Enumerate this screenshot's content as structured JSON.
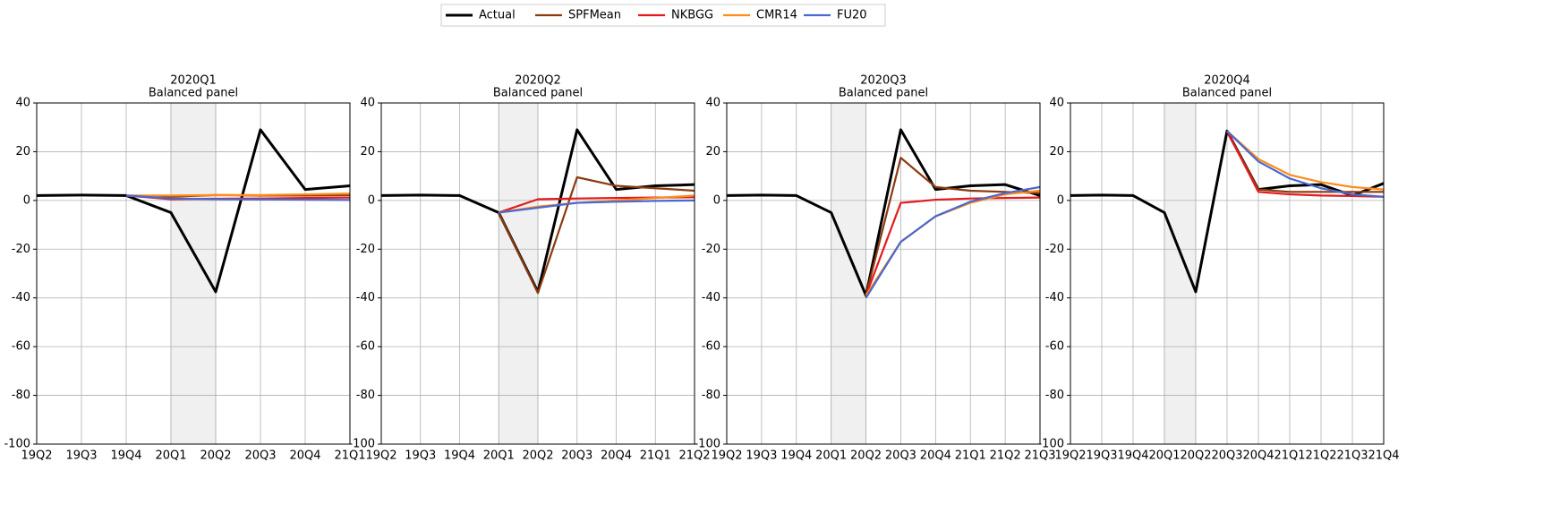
{
  "chart_data": [
    {
      "type": "line",
      "title": "2020Q1",
      "subtitle": "Balanced panel",
      "categories": [
        "19Q2",
        "19Q3",
        "19Q4",
        "20Q1",
        "20Q2",
        "20Q3",
        "20Q4",
        "21Q1"
      ],
      "shade": [
        "20Q1",
        "20Q2"
      ],
      "ylim": [
        -100,
        40
      ],
      "yticks": [
        -100,
        -80,
        -60,
        -40,
        -20,
        0,
        20,
        40
      ],
      "grid": true,
      "legend": "upper center",
      "series": [
        {
          "name": "Actual",
          "color": "#000000",
          "values": [
            2,
            2.2,
            2,
            -5,
            -37.5,
            29,
            4.5,
            6
          ]
        },
        {
          "name": "SPFMean",
          "color": "#8b3a0f",
          "values": [
            null,
            null,
            2,
            1.5,
            2.2,
            2,
            2,
            2.2
          ]
        },
        {
          "name": "NKBGG",
          "color": "#e31a1c",
          "values": [
            null,
            null,
            2,
            0.5,
            0.7,
            0.8,
            1,
            1.2
          ]
        },
        {
          "name": "CMR14",
          "color": "#ff8c1a",
          "values": [
            null,
            null,
            2,
            2,
            2.2,
            2.2,
            2.5,
            2.8
          ]
        },
        {
          "name": "FU20",
          "color": "#4a68d0",
          "values": [
            null,
            null,
            2,
            0.8,
            0.5,
            0.4,
            0.3,
            0.2
          ]
        }
      ]
    },
    {
      "type": "line",
      "title": "2020Q2",
      "subtitle": "Balanced panel",
      "categories": [
        "19Q2",
        "19Q3",
        "19Q4",
        "20Q1",
        "20Q2",
        "20Q3",
        "20Q4",
        "21Q1",
        "21Q2"
      ],
      "shade": [
        "20Q1",
        "20Q2"
      ],
      "ylim": [
        -100,
        40
      ],
      "yticks": [
        -100,
        -80,
        -60,
        -40,
        -20,
        0,
        20,
        40
      ],
      "grid": true,
      "series": [
        {
          "name": "Actual",
          "color": "#000000",
          "values": [
            2,
            2.2,
            2,
            -5,
            -37.5,
            29,
            4.5,
            6,
            6.5
          ]
        },
        {
          "name": "SPFMean",
          "color": "#8b3a0f",
          "values": [
            null,
            null,
            null,
            -5,
            -38,
            9.5,
            6,
            5,
            4
          ]
        },
        {
          "name": "NKBGG",
          "color": "#e31a1c",
          "values": [
            null,
            null,
            null,
            -5,
            0.5,
            0.8,
            1,
            1.2,
            1.3
          ]
        },
        {
          "name": "CMR14",
          "color": "#ff8c1a",
          "values": [
            null,
            null,
            null,
            -5,
            -2.5,
            -1,
            0,
            1,
            2
          ]
        },
        {
          "name": "FU20",
          "color": "#4a68d0",
          "values": [
            null,
            null,
            null,
            -5,
            -3,
            -1,
            -0.5,
            -0.2,
            0
          ]
        }
      ]
    },
    {
      "type": "line",
      "title": "2020Q3",
      "subtitle": "Balanced panel",
      "categories": [
        "19Q2",
        "19Q3",
        "19Q4",
        "20Q1",
        "20Q2",
        "20Q3",
        "20Q4",
        "21Q1",
        "21Q2",
        "21Q3"
      ],
      "shade": [
        "20Q1",
        "20Q2"
      ],
      "ylim": [
        -100,
        40
      ],
      "yticks": [
        -100,
        -80,
        -60,
        -40,
        -20,
        0,
        20,
        40
      ],
      "grid": true,
      "series": [
        {
          "name": "Actual",
          "color": "#000000",
          "values": [
            2,
            2.2,
            2,
            -5,
            -39,
            29,
            4.5,
            6,
            6.5,
            2
          ]
        },
        {
          "name": "SPFMean",
          "color": "#8b3a0f",
          "values": [
            null,
            null,
            null,
            null,
            -39,
            17.5,
            5.5,
            4,
            3.5,
            3
          ]
        },
        {
          "name": "NKBGG",
          "color": "#e31a1c",
          "values": [
            null,
            null,
            null,
            null,
            -39,
            -1,
            0.3,
            0.8,
            1,
            1.2
          ]
        },
        {
          "name": "CMR14",
          "color": "#ff8c1a",
          "values": [
            null,
            null,
            null,
            null,
            -39,
            -17,
            -6.5,
            -1,
            2.5,
            4
          ]
        },
        {
          "name": "FU20",
          "color": "#4a68d0",
          "values": [
            null,
            null,
            null,
            null,
            -40,
            -17,
            -6.5,
            -0.5,
            3,
            5.5
          ]
        }
      ]
    },
    {
      "type": "line",
      "title": "2020Q4",
      "subtitle": "Balanced panel",
      "categories": [
        "19Q2",
        "19Q3",
        "19Q4",
        "20Q1",
        "20Q2",
        "20Q3",
        "20Q4",
        "21Q1",
        "21Q2",
        "21Q3",
        "21Q4"
      ],
      "shade": [
        "20Q1",
        "20Q2"
      ],
      "ylim": [
        -100,
        40
      ],
      "yticks": [
        -100,
        -80,
        -60,
        -40,
        -20,
        0,
        20,
        40
      ],
      "grid": true,
      "series": [
        {
          "name": "Actual",
          "color": "#000000",
          "values": [
            2,
            2.2,
            2,
            -5,
            -37.5,
            28.5,
            4.5,
            6,
            6.5,
            2,
            7
          ]
        },
        {
          "name": "SPFMean",
          "color": "#8b3a0f",
          "values": [
            null,
            null,
            null,
            null,
            null,
            28.5,
            4.5,
            3.5,
            3.5,
            3.5,
            3.5
          ]
        },
        {
          "name": "NKBGG",
          "color": "#e31a1c",
          "values": [
            null,
            null,
            null,
            null,
            null,
            28.5,
            3.5,
            2.5,
            2,
            1.8,
            1.5
          ]
        },
        {
          "name": "CMR14",
          "color": "#ff8c1a",
          "values": [
            null,
            null,
            null,
            null,
            null,
            28.5,
            17,
            10.5,
            7.5,
            5.5,
            4.5
          ]
        },
        {
          "name": "FU20",
          "color": "#4a68d0",
          "values": [
            null,
            null,
            null,
            null,
            null,
            28.5,
            16,
            9,
            5,
            2.5,
            1.5
          ]
        }
      ]
    }
  ]
}
